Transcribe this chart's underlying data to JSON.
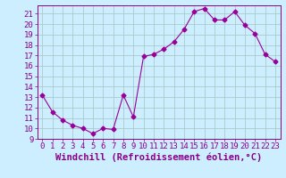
{
  "x": [
    0,
    1,
    2,
    3,
    4,
    5,
    6,
    7,
    8,
    9,
    10,
    11,
    12,
    13,
    14,
    15,
    16,
    17,
    18,
    19,
    20,
    21,
    22,
    23
  ],
  "y": [
    13.2,
    11.6,
    10.8,
    10.3,
    10.0,
    9.5,
    10.0,
    9.9,
    13.2,
    11.1,
    16.9,
    17.1,
    17.6,
    18.3,
    19.5,
    21.2,
    21.5,
    20.4,
    20.4,
    21.2,
    19.9,
    19.1,
    17.1,
    16.4
  ],
  "line_color": "#990099",
  "marker": "D",
  "marker_size": 2.5,
  "background_color": "#cceeff",
  "grid_color": "#aacccc",
  "xlabel": "Windchill (Refroidissement éolien,°C)",
  "ylabel": "",
  "xlim": [
    -0.5,
    23.5
  ],
  "ylim": [
    9,
    21.8
  ],
  "yticks": [
    9,
    10,
    11,
    12,
    13,
    14,
    15,
    16,
    17,
    18,
    19,
    20,
    21
  ],
  "xticks": [
    0,
    1,
    2,
    3,
    4,
    5,
    6,
    7,
    8,
    9,
    10,
    11,
    12,
    13,
    14,
    15,
    16,
    17,
    18,
    19,
    20,
    21,
    22,
    23
  ],
  "tick_color": "#880088",
  "label_color": "#880088",
  "font_size": 6.5,
  "xlabel_fontsize": 7.5
}
